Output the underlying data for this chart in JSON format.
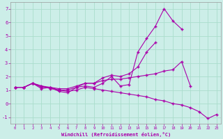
{
  "xlabel": "Windchill (Refroidissement éolien,°C)",
  "background_color": "#cceee8",
  "grid_color": "#aaddcc",
  "line_color": "#aa00aa",
  "x_values": [
    0,
    1,
    2,
    3,
    4,
    5,
    6,
    7,
    8,
    9,
    10,
    11,
    12,
    13,
    14,
    15,
    16,
    17,
    18,
    19,
    20,
    21,
    22,
    23
  ],
  "line_peak": [
    1.2,
    1.2,
    1.5,
    1.1,
    1.2,
    0.9,
    0.8,
    1.2,
    1.3,
    1.2,
    1.5,
    2.0,
    1.3,
    1.4,
    3.8,
    4.8,
    5.7,
    7.0,
    6.1,
    5.5,
    null,
    null,
    null,
    null
  ],
  "line_mid": [
    1.2,
    1.2,
    1.5,
    1.2,
    1.2,
    1.0,
    1.0,
    1.2,
    1.5,
    1.5,
    1.9,
    2.1,
    2.0,
    2.2,
    2.7,
    3.8,
    4.5,
    null,
    null,
    null,
    null,
    null,
    null,
    null
  ],
  "line_flat": [
    1.2,
    1.2,
    1.5,
    1.3,
    1.2,
    1.1,
    1.1,
    1.3,
    1.5,
    1.5,
    1.7,
    1.8,
    1.8,
    1.9,
    2.0,
    2.1,
    2.2,
    2.4,
    2.5,
    3.1,
    1.3,
    null,
    null,
    null
  ],
  "line_down": [
    1.2,
    1.2,
    1.5,
    1.3,
    1.1,
    1.0,
    0.9,
    1.0,
    1.2,
    1.1,
    1.0,
    0.9,
    0.8,
    0.7,
    0.6,
    0.5,
    0.3,
    0.2,
    0.0,
    -0.1,
    -0.3,
    -0.6,
    -1.1,
    -0.8
  ],
  "ylim": [
    -1.5,
    7.5
  ],
  "xlim": [
    -0.5,
    23.5
  ],
  "yticks": [
    -1,
    0,
    1,
    2,
    3,
    4,
    5,
    6,
    7
  ],
  "xticks": [
    0,
    1,
    2,
    3,
    4,
    5,
    6,
    7,
    8,
    9,
    10,
    11,
    12,
    13,
    14,
    15,
    16,
    17,
    18,
    19,
    20,
    21,
    22,
    23
  ]
}
